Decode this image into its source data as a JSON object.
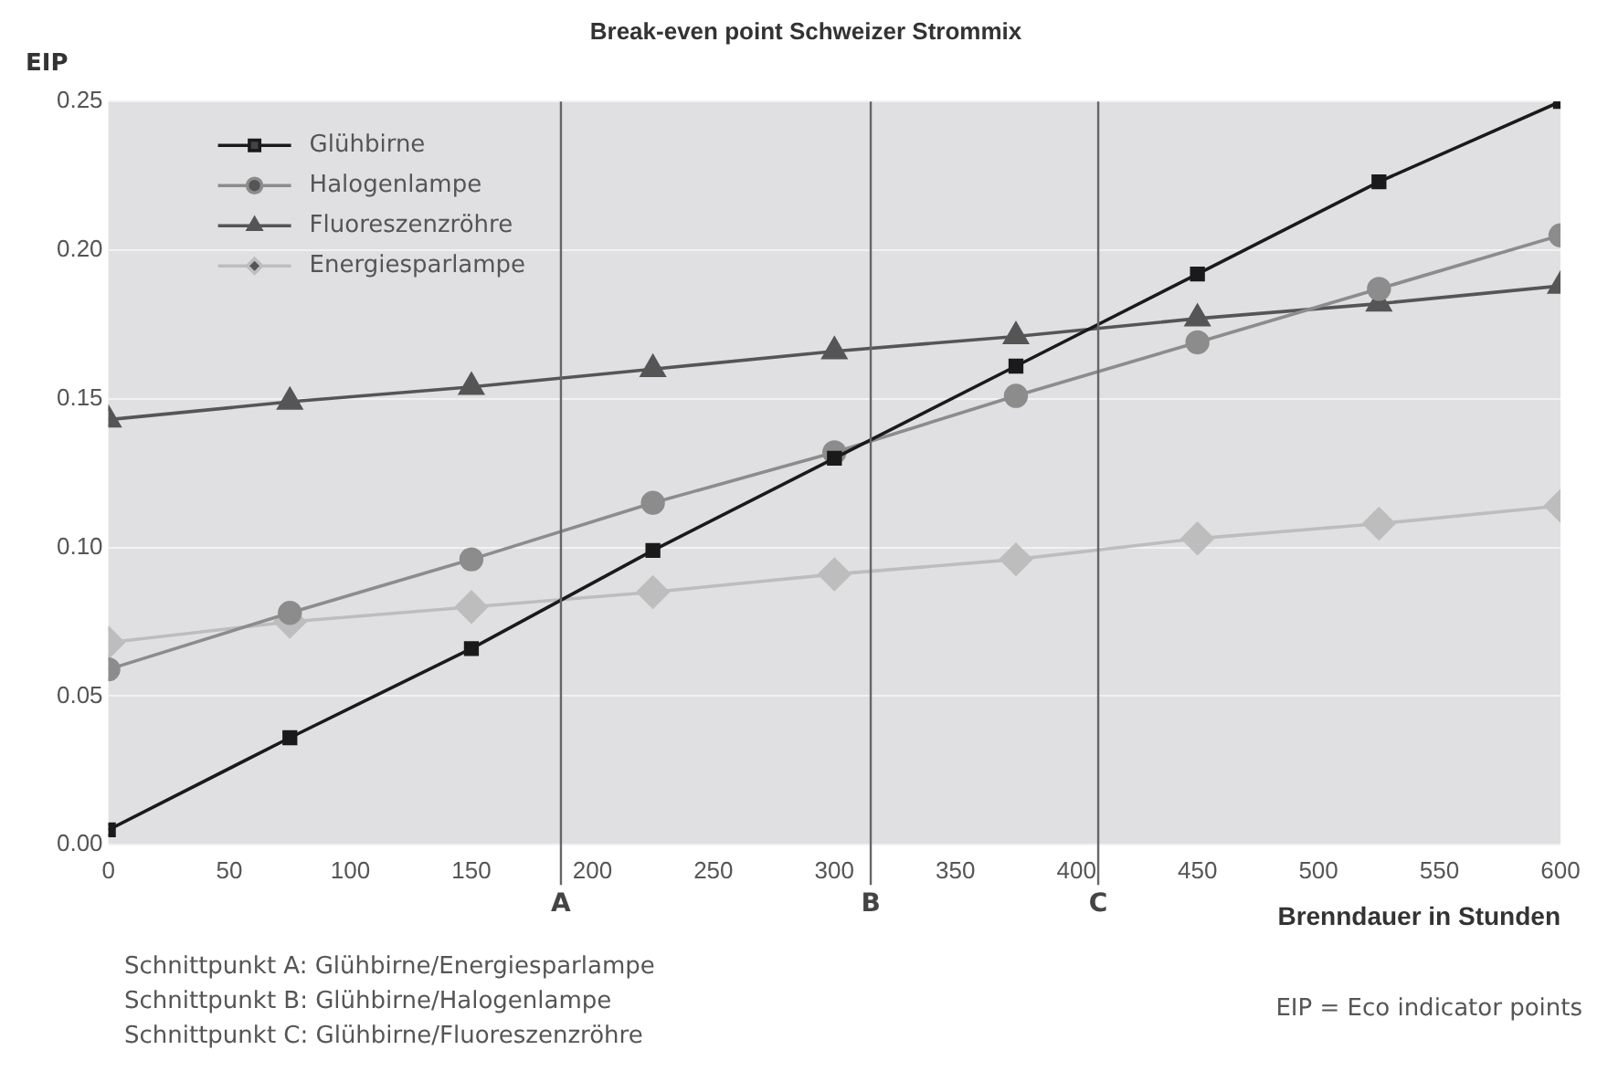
{
  "chart_data": {
    "type": "line",
    "title": "Break-even point Schweizer Strommix",
    "xlabel": "Brenndauer in Stunden",
    "ylabel": "EIP",
    "x": [
      0,
      75,
      150,
      225,
      300,
      375,
      450,
      525,
      600
    ],
    "series": [
      {
        "name": "Glühbirne",
        "color": "#1a1a1a",
        "marker": "square",
        "values": [
          0.005,
          0.036,
          0.066,
          0.099,
          0.13,
          0.161,
          0.192,
          0.223,
          0.25
        ]
      },
      {
        "name": "Halogenlampe",
        "color": "#8c8c8c",
        "marker": "circle",
        "values": [
          0.059,
          0.078,
          0.096,
          0.115,
          0.132,
          0.151,
          0.169,
          0.187,
          0.205
        ]
      },
      {
        "name": "Fluoreszenzröhre",
        "color": "#555555",
        "marker": "triangle",
        "values": [
          0.143,
          0.149,
          0.154,
          0.16,
          0.166,
          0.171,
          0.177,
          0.182,
          0.188
        ]
      },
      {
        "name": "Energiesparlampe",
        "color": "#bdbdbd",
        "marker": "diamond",
        "values": [
          0.068,
          0.075,
          0.08,
          0.085,
          0.091,
          0.096,
          0.103,
          0.108,
          0.114
        ]
      }
    ],
    "xlim": [
      0,
      600
    ],
    "xticks": [
      0,
      50,
      100,
      150,
      200,
      250,
      300,
      350,
      400,
      450,
      500,
      550,
      600
    ],
    "ylim": [
      0,
      0.25
    ],
    "yticks": [
      {
        "value": 0,
        "label": "0.00"
      },
      {
        "value": 0.05,
        "label": "0.05"
      },
      {
        "value": 0.1,
        "label": "0.10"
      },
      {
        "value": 0.15,
        "label": "0.15"
      },
      {
        "value": 0.2,
        "label": "0.20"
      },
      {
        "value": 0.25,
        "label": "0.25"
      }
    ],
    "ref_lines": [
      {
        "axis": "x",
        "value": 187,
        "label": "A",
        "color": "#666666"
      },
      {
        "axis": "x",
        "value": 315,
        "label": "B",
        "color": "#666666"
      },
      {
        "axis": "x",
        "value": 409,
        "label": "C",
        "color": "#666666"
      }
    ],
    "grid": "y",
    "legend": "top left",
    "line_style": "solid",
    "annotations": [
      "Schnittpunkt A:  Glühbirne/Energiesparlampe",
      "Schnittpunkt B:  Glühbirne/Halogenlampe",
      "Schnittpunkt C:  Glühbirne/Fluoreszenzröhre",
      "EIP = Eco indicator points"
    ]
  }
}
